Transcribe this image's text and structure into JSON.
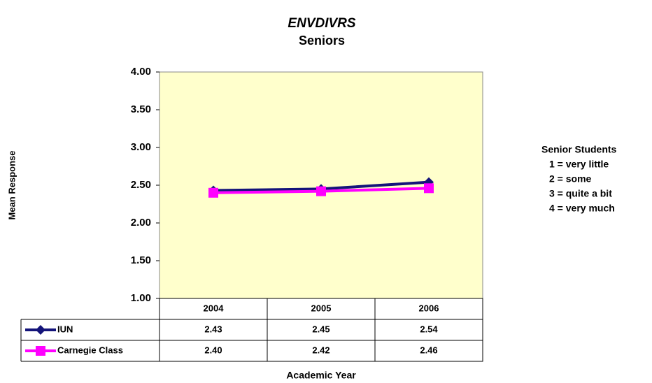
{
  "chart_data": {
    "type": "line",
    "title": "ENVDIVRS",
    "subtitle": "Seniors",
    "y_label": "Mean Response",
    "x_label": "Academic Year",
    "categories": [
      "2004",
      "2005",
      "2006"
    ],
    "series": [
      {
        "name": "IUN",
        "color": "#14147a",
        "marker": "diamond",
        "values": [
          2.43,
          2.45,
          2.54
        ],
        "value_labels": [
          "2.43",
          "2.45",
          "2.54"
        ]
      },
      {
        "name": "Carnegie Class",
        "color": "#ff00ff",
        "marker": "square",
        "values": [
          2.4,
          2.42,
          2.46
        ],
        "value_labels": [
          "2.40",
          "2.42",
          "2.46"
        ]
      }
    ],
    "ylim": [
      1,
      4
    ],
    "yticks": [
      {
        "value": 1,
        "label": "1.00"
      },
      {
        "value": 1.5,
        "label": "1.50"
      },
      {
        "value": 2,
        "label": "2.00"
      },
      {
        "value": 2.5,
        "label": "2.50"
      },
      {
        "value": 3,
        "label": "3.00"
      },
      {
        "value": 3.5,
        "label": "3.50"
      },
      {
        "value": 4,
        "label": "4.00"
      }
    ],
    "plot_background": "#ffffcc",
    "notes": [
      "Senior Students",
      "1 = very little",
      "2 = some",
      "3 = quite a bit",
      "4 = very much"
    ]
  }
}
